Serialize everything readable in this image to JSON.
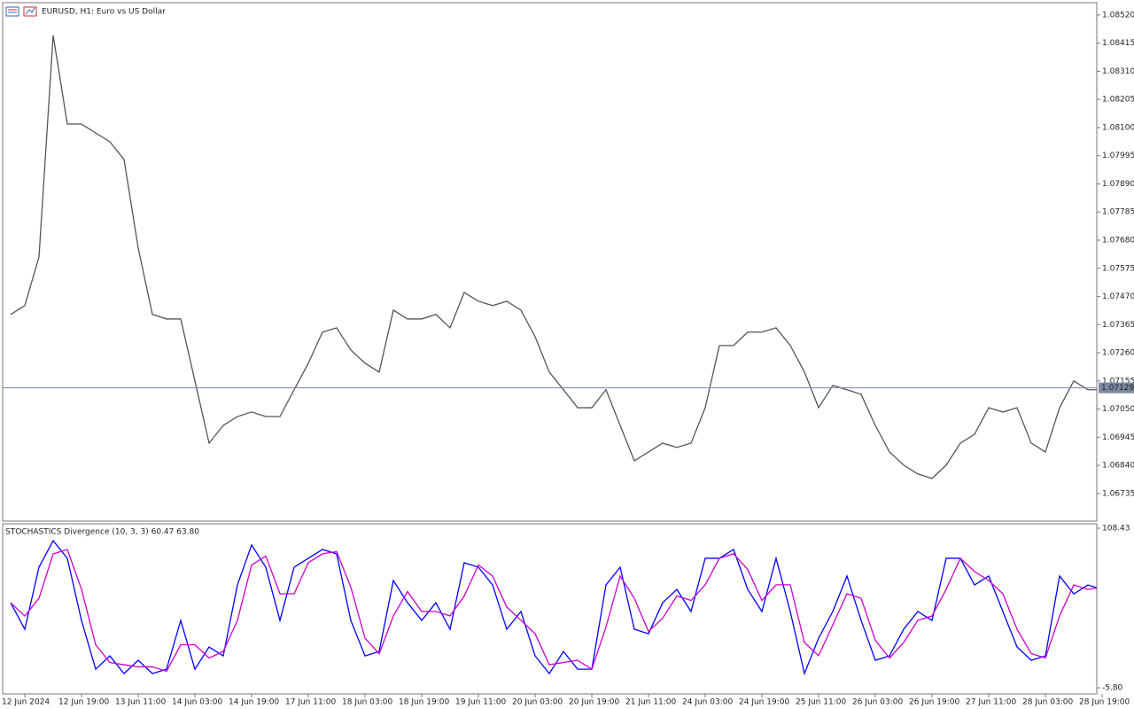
{
  "chart_data": [
    {
      "type": "line",
      "title": "EURUSD, H1:  Euro vs US Dollar",
      "color": "#555555",
      "ylim": [
        1.06632,
        1.08566
      ],
      "yticks": [
        {
          "value": 1.0852,
          "label": "1.08520"
        },
        1.08415,
        {
          "value": 1.0831,
          "label": "1.08310"
        },
        1.08205,
        {
          "value": 1.081,
          "label": "1.08100"
        },
        1.07995,
        {
          "value": 1.0789,
          "label": "1.07890"
        },
        1.07785,
        {
          "value": 1.0768,
          "label": "1.07680"
        },
        1.07575,
        {
          "value": 1.0747,
          "label": "1.07470"
        },
        1.07365,
        {
          "value": 1.0726,
          "label": "1.07260"
        },
        1.07155,
        {
          "value": 1.0705,
          "label": "1.07050"
        },
        1.06945,
        {
          "value": 1.0684,
          "label": "1.06840"
        },
        1.06735
      ],
      "current_price": 1.07129,
      "values": [
        1.07403,
        1.07436,
        1.07617,
        1.08444,
        1.08113,
        1.08113,
        1.0808,
        1.08047,
        1.07981,
        1.07651,
        1.07403,
        1.07386,
        1.07386,
        1.07155,
        1.06923,
        1.06989,
        1.07022,
        1.07039,
        1.07022,
        1.07022,
        1.07122,
        1.07221,
        1.07337,
        1.07353,
        1.0727,
        1.07221,
        1.07188,
        1.07419,
        1.07386,
        1.07386,
        1.07403,
        1.07353,
        1.07485,
        1.07452,
        1.07436,
        1.07452,
        1.07419,
        1.0732,
        1.07188,
        1.07122,
        1.07055,
        1.07055,
        1.07122,
        1.06989,
        1.06857,
        1.0689,
        1.06923,
        1.06907,
        1.06923,
        1.07055,
        1.07287,
        1.07287,
        1.07337,
        1.07337,
        1.07353,
        1.07287,
        1.07188,
        1.07055,
        1.07138,
        1.07122,
        1.07105,
        1.06989,
        1.0689,
        1.06841,
        1.06808,
        1.06791,
        1.06841,
        1.06923,
        1.06956,
        1.07055,
        1.07039,
        1.07055,
        1.06923,
        1.0689,
        1.07055,
        1.07155,
        1.07122,
        1.07122
      ]
    },
    {
      "type": "line",
      "title": "STOCHASTICS Divergence (10, 3, 3) 60.47 63.80",
      "ylim": [
        -10.2,
        111.6
      ],
      "yticks": [
        108.43,
        {
          "value": -5.8,
          "label": "-5.80"
        }
      ],
      "categories": [
        null,
        "12 Jun 2024",
        null,
        null,
        null,
        "12 Jun 19:00",
        null,
        null,
        null,
        "13 Jun 11:00",
        null,
        null,
        null,
        "14 Jun 03:00",
        null,
        null,
        null,
        "14 Jun 19:00",
        null,
        null,
        null,
        "17 Jun 11:00",
        null,
        null,
        null,
        "18 Jun 03:00",
        null,
        null,
        null,
        "18 Jun 19:00",
        null,
        null,
        null,
        "19 Jun 11:00",
        null,
        null,
        null,
        "20 Jun 03:00",
        null,
        null,
        null,
        "20 Jun 19:00",
        null,
        null,
        null,
        "21 Jun 11:00",
        null,
        null,
        null,
        "24 Jun 03:00",
        null,
        null,
        null,
        "24 Jun 19:00",
        null,
        null,
        null,
        "25 Jun 11:00",
        null,
        null,
        null,
        "26 Jun 03:00",
        null,
        null,
        null,
        "26 Jun 19:00",
        null,
        null,
        null,
        "27 Jun 11:00",
        null,
        null,
        null,
        "28 Jun 03:00",
        null,
        null,
        null,
        "28 Jun 19:00"
      ],
      "series": [
        {
          "color": "#0000ff",
          "values": [
            55.1,
            36.1,
            80.5,
            99.5,
            86.9,
            42.4,
            7.5,
            17.0,
            4.4,
            13.9,
            4.4,
            7.5,
            42.4,
            7.5,
            23.4,
            17.0,
            67.8,
            96.4,
            80.5,
            42.4,
            80.5,
            86.9,
            93.2,
            90.0,
            42.4,
            17.0,
            20.2,
            71.0,
            55.1,
            42.4,
            55.1,
            36.1,
            83.7,
            80.5,
            67.8,
            36.1,
            48.8,
            17.0,
            4.4,
            20.2,
            7.5,
            7.5,
            67.8,
            80.5,
            36.1,
            32.9,
            55.1,
            64.6,
            48.8,
            86.9,
            86.9,
            93.2,
            64.6,
            48.8,
            86.9,
            48.8,
            4.4,
            29.7,
            48.8,
            74.2,
            42.4,
            13.9,
            17.0,
            36.1,
            48.8,
            42.4,
            86.9,
            86.9,
            67.8,
            74.2,
            48.8,
            23.4,
            13.9,
            17.0,
            74.2,
            61.4,
            67.8,
            64.6
          ]
        },
        {
          "color": "#cc00cc",
          "values": [
            55.1,
            45.6,
            58.3,
            90.0,
            93.2,
            64.7,
            25.0,
            12.3,
            10.7,
            9.2,
            9.2,
            6.0,
            25.0,
            25.0,
            15.5,
            20.2,
            42.4,
            82.1,
            88.5,
            61.5,
            61.5,
            83.7,
            90.1,
            91.6,
            66.2,
            29.7,
            18.6,
            45.6,
            63.1,
            48.8,
            48.8,
            45.6,
            59.9,
            82.1,
            74.2,
            52.0,
            42.5,
            32.9,
            10.7,
            12.3,
            13.9,
            7.5,
            37.7,
            74.2,
            58.3,
            34.5,
            44.0,
            59.9,
            56.7,
            67.9,
            86.9,
            90.1,
            78.9,
            56.7,
            67.9,
            67.9,
            26.6,
            17.1,
            39.3,
            61.5,
            58.3,
            28.2,
            15.5,
            26.6,
            42.5,
            45.6,
            64.7,
            86.9,
            77.4,
            71.0,
            61.5,
            36.1,
            18.7,
            15.5,
            45.6,
            67.8,
            64.6,
            66.2
          ]
        }
      ]
    }
  ]
}
